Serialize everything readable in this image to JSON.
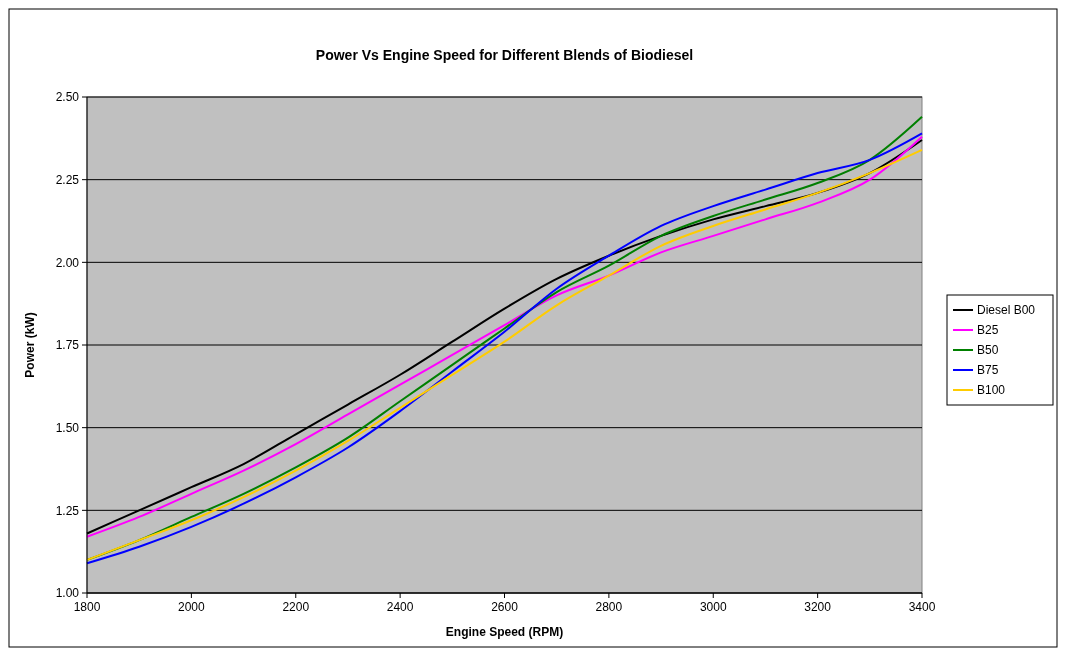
{
  "chart_data": {
    "type": "line",
    "title": "Power Vs Engine Speed for Different Blends of Biodiesel",
    "xlabel": "Engine Speed (RPM)",
    "ylabel": "Power (kW)",
    "x": [
      1800,
      1900,
      2000,
      2100,
      2200,
      2300,
      2400,
      2500,
      2600,
      2700,
      2800,
      2900,
      3000,
      3100,
      3200,
      3300,
      3400
    ],
    "series": [
      {
        "name": "Diesel B00",
        "color": "#000000",
        "values": [
          1.18,
          1.25,
          1.32,
          1.39,
          1.48,
          1.57,
          1.66,
          1.76,
          1.86,
          1.95,
          2.02,
          2.08,
          2.13,
          2.17,
          2.21,
          2.27,
          2.37
        ]
      },
      {
        "name": "B25",
        "color": "#ff00ff",
        "values": [
          1.17,
          1.23,
          1.3,
          1.37,
          1.45,
          1.54,
          1.63,
          1.72,
          1.81,
          1.9,
          1.96,
          2.03,
          2.08,
          2.13,
          2.18,
          2.25,
          2.38
        ]
      },
      {
        "name": "B50",
        "color": "#008000",
        "values": [
          1.1,
          1.16,
          1.23,
          1.3,
          1.38,
          1.47,
          1.58,
          1.69,
          1.8,
          1.91,
          1.99,
          2.08,
          2.14,
          2.19,
          2.24,
          2.31,
          2.44
        ]
      },
      {
        "name": "B75",
        "color": "#0000ff",
        "values": [
          1.09,
          1.14,
          1.2,
          1.27,
          1.35,
          1.44,
          1.55,
          1.67,
          1.79,
          1.92,
          2.02,
          2.11,
          2.17,
          2.22,
          2.27,
          2.31,
          2.39
        ]
      },
      {
        "name": "B100",
        "color": "#ffcc00",
        "values": [
          1.1,
          1.16,
          1.22,
          1.29,
          1.37,
          1.46,
          1.56,
          1.66,
          1.76,
          1.87,
          1.96,
          2.05,
          2.11,
          2.16,
          2.21,
          2.27,
          2.34
        ]
      }
    ],
    "xlim": [
      1800,
      3400
    ],
    "xticks": [
      1800,
      2000,
      2200,
      2400,
      2600,
      2800,
      3000,
      3200,
      3400
    ],
    "ylim": [
      1,
      2.5
    ],
    "yticks": [
      {
        "value": 1,
        "label": "1.00"
      },
      {
        "value": 1.25,
        "label": "1.25"
      },
      {
        "value": 1.5,
        "label": "1.50"
      },
      {
        "value": 1.75,
        "label": "1.75"
      },
      {
        "value": 2,
        "label": "2.00"
      },
      {
        "value": 2.25,
        "label": "2.25"
      },
      {
        "value": 2.5,
        "label": "2.50"
      }
    ],
    "grid": "y",
    "legend": "right",
    "marker": "none",
    "line_style": "solid"
  }
}
